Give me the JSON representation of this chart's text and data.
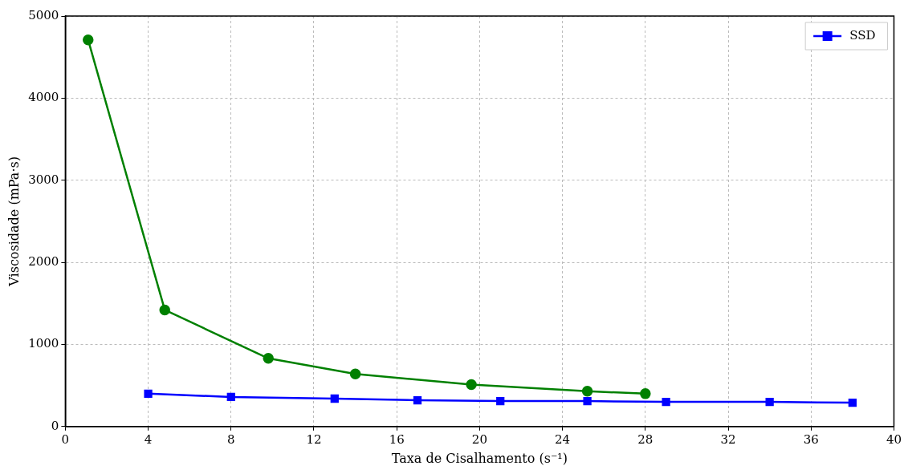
{
  "chart_data": {
    "type": "line",
    "xlabel": "Taxa de Cisalhamento (s⁻¹)",
    "ylabel": "Viscosidade (mPa·s)",
    "xlim": [
      0,
      40
    ],
    "xticks": [
      0,
      4,
      8,
      12,
      16,
      20,
      24,
      28,
      32,
      36,
      40
    ],
    "ylim": [
      0,
      5000
    ],
    "yticks": [
      0,
      1000,
      2000,
      3000,
      4000,
      5000
    ],
    "grid": true,
    "legend": "top right",
    "line_style": "solid",
    "series": [
      {
        "color": "#008000",
        "marker": "circle",
        "x": [
          1.1,
          4.8,
          9.8,
          14,
          19.6,
          25.2,
          28
        ],
        "values": [
          4710,
          1420,
          830,
          640,
          510,
          430,
          400
        ]
      },
      {
        "name": "SSD",
        "color": "#0000ff",
        "marker": "square",
        "x": [
          4,
          8,
          13,
          17,
          21,
          25.2,
          29,
          34,
          38
        ],
        "values": [
          400,
          360,
          340,
          320,
          310,
          310,
          300,
          300,
          290
        ]
      }
    ]
  }
}
